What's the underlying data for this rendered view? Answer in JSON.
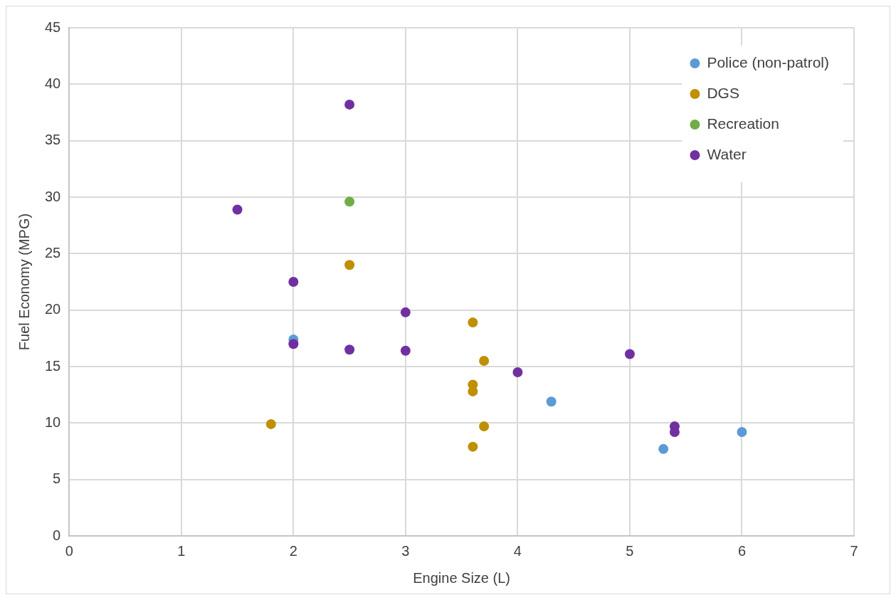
{
  "chart_data": {
    "type": "scatter",
    "xlabel": "Engine Size (L)",
    "ylabel": "Fuel Economy (MPG)",
    "xlim": [
      0,
      7
    ],
    "xticks": [
      0,
      1,
      2,
      3,
      4,
      5,
      6,
      7
    ],
    "ylim": [
      0,
      45
    ],
    "yticks": [
      0,
      5,
      10,
      15,
      20,
      25,
      30,
      35,
      40,
      45
    ],
    "grid": true,
    "legend": "top right",
    "marker": "circle",
    "series": [
      {
        "name": "Police (non-patrol)",
        "color": "#5b9bd5",
        "x": [
          2.0,
          4.0,
          4.3,
          5.3,
          6.0
        ],
        "values": [
          17.4,
          null,
          11.9,
          7.7,
          9.2
        ]
      },
      {
        "name": "DGS",
        "color": "#bf9000",
        "x": [
          1.8,
          2.5,
          3.6,
          3.7,
          3.6,
          3.6,
          3.7,
          3.6
        ],
        "values": [
          9.9,
          24.0,
          18.9,
          15.5,
          13.4,
          12.8,
          9.7,
          7.9
        ]
      },
      {
        "name": "Recreation",
        "color": "#70ad47",
        "x": [
          2.5
        ],
        "values": [
          29.6
        ]
      },
      {
        "name": "Water",
        "color": "#7030a0",
        "x": [
          1.5,
          2.5,
          2.0,
          3.0,
          2.0,
          2.5,
          3.0,
          4.0,
          5.0,
          5.4,
          5.4
        ],
        "values": [
          28.9,
          38.2,
          22.5,
          19.8,
          17.0,
          16.5,
          16.4,
          14.5,
          16.1,
          9.7,
          9.2
        ]
      }
    ]
  }
}
